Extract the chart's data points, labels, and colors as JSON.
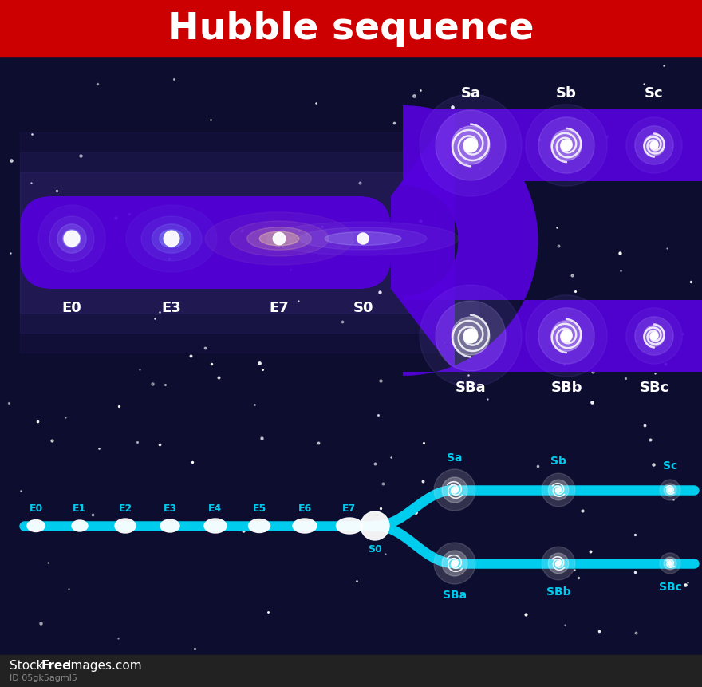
{
  "title": "Hubble sequence",
  "title_bg": "#cc0000",
  "title_color": "#ffffff",
  "bg_color": "#0d0d30",
  "watermark_bg": "#222222",
  "purple": "#5500dd",
  "purple_light": "#7733ff",
  "cyan_color": "#00ccee",
  "upper_spiral_labels": [
    "Sa",
    "Sb",
    "Sc"
  ],
  "lower_spiral_labels": [
    "SBa",
    "SBb",
    "SBc"
  ],
  "lower_diagram_E_labels": [
    "E0",
    "E1",
    "E2",
    "E3",
    "E4",
    "E5",
    "E6",
    "E7"
  ],
  "lower_diagram_upper_labels": [
    "Sa",
    "Sb",
    "Sc"
  ],
  "lower_diagram_lower_labels": [
    "SBa",
    "SBb",
    "SBc"
  ]
}
